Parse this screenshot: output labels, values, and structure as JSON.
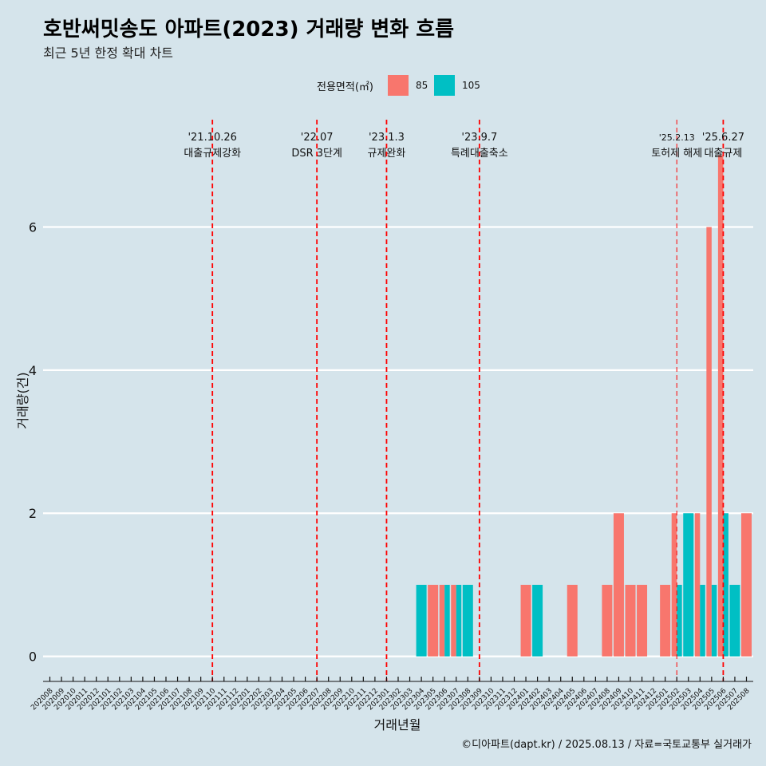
{
  "title": "호반써밋송도 아파트(2023) 거래량 변화 흐름",
  "subtitle": "최근 5년 한정 확대 차트",
  "caption": "©디아파트(dapt.kr) / 2025.08.13 / 자료=국토교통부 실거래가",
  "legend": {
    "title": "전용면적(㎡)",
    "items": [
      {
        "label": "85",
        "color": "#f8766d"
      },
      {
        "label": "105",
        "color": "#00bfc4"
      }
    ]
  },
  "chart_data": {
    "type": "bar",
    "xlabel": "거래년월",
    "ylabel": "거래량(건)",
    "ylim": [
      -0.35,
      7.5
    ],
    "yticks": [
      0,
      2,
      4,
      6
    ],
    "categories": [
      "202008",
      "202009",
      "202010",
      "202011",
      "202012",
      "202101",
      "202102",
      "202103",
      "202104",
      "202105",
      "202106",
      "202107",
      "202108",
      "202109",
      "202110",
      "202111",
      "202112",
      "202201",
      "202202",
      "202203",
      "202204",
      "202205",
      "202206",
      "202207",
      "202208",
      "202209",
      "202210",
      "202211",
      "202212",
      "202301",
      "202302",
      "202303",
      "202304",
      "202305",
      "202306",
      "202307",
      "202308",
      "202309",
      "202310",
      "202311",
      "202312",
      "202401",
      "202402",
      "202403",
      "202404",
      "202405",
      "202406",
      "202407",
      "202408",
      "202409",
      "202410",
      "202411",
      "202412",
      "202501",
      "202502",
      "202503",
      "202504",
      "202505",
      "202506",
      "202507",
      "202508"
    ],
    "series": [
      {
        "name": "85",
        "color": "#f8766d",
        "values": [
          0,
          0,
          0,
          0,
          0,
          0,
          0,
          0,
          0,
          0,
          0,
          0,
          0,
          0,
          0,
          0,
          0,
          0,
          0,
          0,
          0,
          0,
          0,
          0,
          0,
          0,
          0,
          0,
          0,
          0,
          0,
          0,
          0,
          1,
          1,
          1,
          0,
          0,
          0,
          0,
          0,
          1,
          0,
          0,
          0,
          1,
          0,
          0,
          1,
          2,
          1,
          1,
          0,
          1,
          2,
          0,
          2,
          6,
          7,
          0,
          2
        ]
      },
      {
        "name": "105",
        "color": "#00bfc4",
        "values": [
          0,
          0,
          0,
          0,
          0,
          0,
          0,
          0,
          0,
          0,
          0,
          0,
          0,
          0,
          0,
          0,
          0,
          0,
          0,
          0,
          0,
          0,
          0,
          0,
          0,
          0,
          0,
          0,
          0,
          0,
          0,
          0,
          1,
          0,
          1,
          1,
          1,
          0,
          0,
          0,
          0,
          0,
          1,
          0,
          0,
          0,
          0,
          0,
          0,
          0,
          0,
          0,
          0,
          0,
          1,
          2,
          1,
          1,
          2,
          1,
          0
        ]
      }
    ],
    "events": [
      {
        "date": "'21.10.26",
        "label": "대출규제강화",
        "x": "202110"
      },
      {
        "date": "'22.07",
        "label": "DSR 3단계",
        "x": "202207"
      },
      {
        "date": "'23.1.3",
        "label": "규제완화",
        "x": "202301"
      },
      {
        "date": "'23.9.7",
        "label": "특례대출축소",
        "x": "202309"
      },
      {
        "date": "'25.2.13",
        "label": "토허제 해제",
        "x": "202502"
      },
      {
        "date": "'25.6.27",
        "label": "대출규제",
        "x": "202506"
      }
    ]
  }
}
